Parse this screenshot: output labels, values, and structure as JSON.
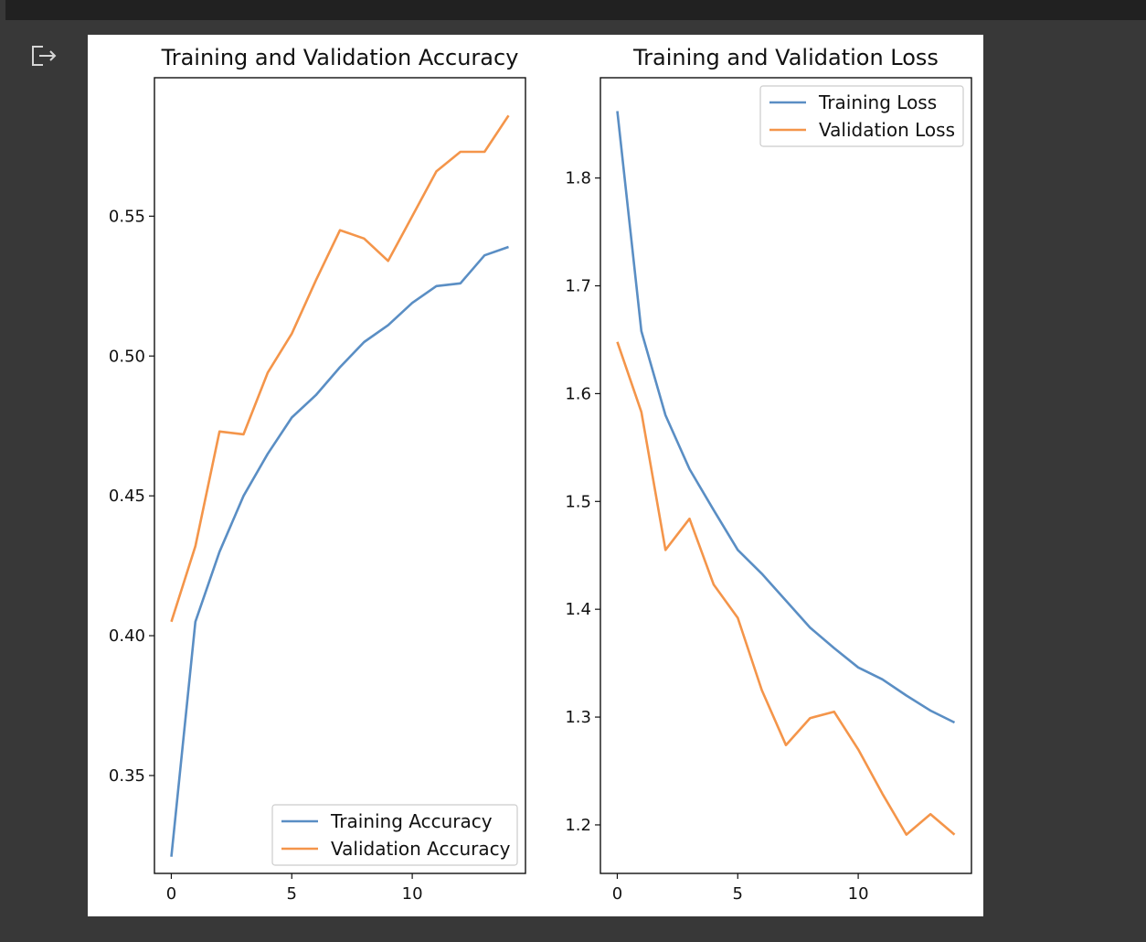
{
  "output_cell": {
    "icon": "output-redirect-icon"
  },
  "colors": {
    "training": "#5a8ec4",
    "validation": "#f4954a"
  },
  "chart_data": [
    {
      "type": "line",
      "title": "Training and Validation Accuracy",
      "xlabel": "",
      "ylabel": "",
      "x": [
        0,
        1,
        2,
        3,
        4,
        5,
        6,
        7,
        8,
        9,
        10,
        11,
        12,
        13,
        14
      ],
      "xlim": [
        -0.7,
        14.7
      ],
      "ylim": [
        0.315,
        0.5995
      ],
      "xticks": [
        0,
        5,
        10
      ],
      "xtick_labels": [
        "0",
        "5",
        "10"
      ],
      "yticks": [
        0.35,
        0.4,
        0.45,
        0.5,
        0.55
      ],
      "ytick_labels": [
        "0.35",
        "0.40",
        "0.45",
        "0.50",
        "0.55"
      ],
      "legend_position": "lower-right",
      "grid": false,
      "series": [
        {
          "name": "Training Accuracy",
          "color": "#5a8ec4",
          "values": [
            0.321,
            0.405,
            0.43,
            0.45,
            0.465,
            0.478,
            0.486,
            0.496,
            0.505,
            0.511,
            0.519,
            0.525,
            0.526,
            0.536,
            0.539
          ]
        },
        {
          "name": "Validation Accuracy",
          "color": "#f4954a",
          "values": [
            0.405,
            0.432,
            0.473,
            0.472,
            0.494,
            0.508,
            0.527,
            0.545,
            0.542,
            0.534,
            0.55,
            0.566,
            0.573,
            0.573,
            0.586
          ]
        }
      ]
    },
    {
      "type": "line",
      "title": "Training and Validation Loss",
      "xlabel": "",
      "ylabel": "",
      "x": [
        0,
        1,
        2,
        3,
        4,
        5,
        6,
        7,
        8,
        9,
        10,
        11,
        12,
        13,
        14
      ],
      "xlim": [
        -0.7,
        14.7
      ],
      "ylim": [
        1.155,
        1.893
      ],
      "xticks": [
        0,
        5,
        10
      ],
      "xtick_labels": [
        "0",
        "5",
        "10"
      ],
      "yticks": [
        1.2,
        1.3,
        1.4,
        1.5,
        1.6,
        1.7,
        1.8
      ],
      "ytick_labels": [
        "1.2",
        "1.3",
        "1.4",
        "1.5",
        "1.6",
        "1.7",
        "1.8"
      ],
      "legend_position": "upper-right",
      "grid": false,
      "series": [
        {
          "name": "Training Loss",
          "color": "#5a8ec4",
          "values": [
            1.862,
            1.658,
            1.58,
            1.53,
            1.492,
            1.455,
            1.433,
            1.408,
            1.383,
            1.364,
            1.346,
            1.335,
            1.32,
            1.306,
            1.295
          ]
        },
        {
          "name": "Validation Loss",
          "color": "#f4954a",
          "values": [
            1.648,
            1.583,
            1.455,
            1.484,
            1.423,
            1.392,
            1.325,
            1.274,
            1.299,
            1.305,
            1.27,
            1.229,
            1.191,
            1.21,
            1.191
          ]
        }
      ]
    }
  ]
}
